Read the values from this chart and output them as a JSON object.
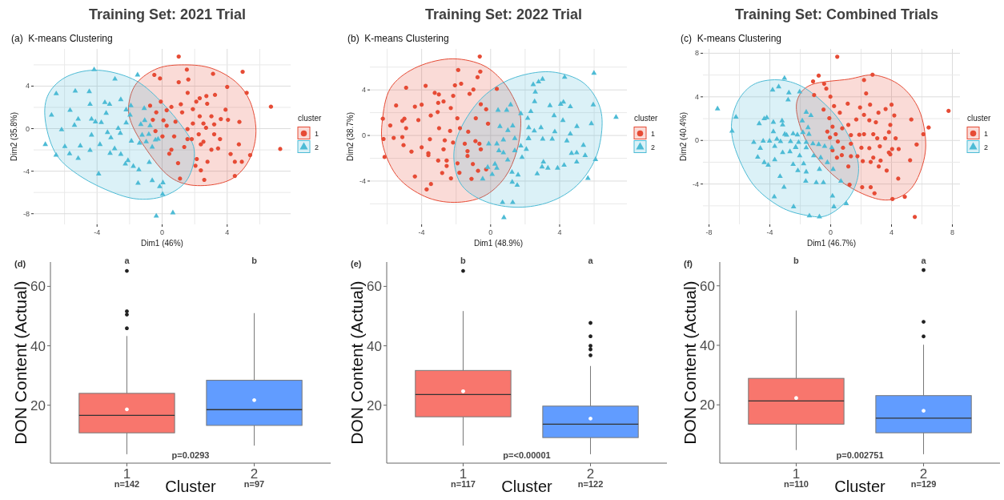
{
  "chart_data": [
    {
      "type": "scatter",
      "title": "Training Set: 2021 Trial",
      "subtitle": "(a)  K-means Clustering",
      "xlabel": "Dim1 (46%)",
      "ylabel": "Dim2 (35.8%)",
      "xlim": [
        -7.9,
        7.9
      ],
      "ylim": [
        -9,
        7.5
      ],
      "xticks": [
        {
          "value": -6,
          "label": null
        },
        -4,
        {
          "value": -2,
          "label": null
        },
        0,
        {
          "value": 2,
          "label": null
        },
        4,
        {
          "value": 6,
          "label": null
        }
      ],
      "yticks": [
        -8,
        {
          "value": -6,
          "label": null
        },
        -4,
        {
          "value": -2,
          "label": null
        },
        0,
        {
          "value": 2,
          "label": null
        },
        4,
        {
          "value": 6,
          "label": null
        }
      ],
      "grid": true,
      "legend": "right",
      "legend_title": "cluster",
      "series": [
        {
          "type": "area",
          "color": "#e64b35",
          "x": [
            1.39,
            3.03,
            4.51,
            5.41,
            5.77,
            5.41,
            4.51,
            3.2,
            1.56,
            0.25,
            -1.07,
            -1.89,
            -2.05,
            -1.56,
            -0.25
          ],
          "values": [
            6.0,
            5.68,
            4.42,
            2.54,
            -0.23,
            -2.74,
            -4.5,
            -5.25,
            -5.25,
            -4.25,
            -1.73,
            0.53,
            2.29,
            4.29,
            5.68
          ]
        },
        {
          "type": "area",
          "color": "#4dbbd5",
          "x": [
            -4.18,
            -2.21,
            -0.74,
            1.07,
            1.97,
            1.56,
            0.25,
            -1.39,
            -3.03,
            -5.0,
            -6.48,
            -7.16,
            -7.05,
            -5.98
          ],
          "values": [
            5.5,
            4.92,
            3.54,
            0.53,
            -1.98,
            -4.75,
            -6.26,
            -6.63,
            -6.0,
            -4.5,
            -2.49,
            0.53,
            3.04,
            4.8
          ]
        },
        {
          "name": "1",
          "color": "#e64b35",
          "marker": "circle",
          "x": [
            1.02,
            4.95,
            1.52,
            3.13,
            -0.48,
            -0.13,
            1.61,
            1.02,
            4.0,
            5.2,
            6.69,
            7.26,
            1.57,
            2.31,
            2.72,
            3.25,
            2.1,
            2.77,
            3.9,
            1.15,
            1.89,
            0.57,
            -0.36,
            -0.74,
            -0.08,
            0.28,
            1.23,
            2.31,
            3.03,
            3.61,
            4.05,
            4.75,
            1.89,
            2.54,
            3.2,
            0.82,
            0.08,
            -0.57,
            0.28,
            1.56,
            2.25,
            3.2,
            3.56,
            2.54,
            1.56,
            0.74,
            0.02,
            -0.41,
            1.36,
            2.38,
            3.03,
            3.44,
            4.21,
            4.72,
            5.41,
            4.9,
            4.47,
            2.13,
            2.79,
            0.98,
            0.44,
            2.05,
            2.38,
            4.47,
            2.59,
            1.1,
            1.82,
            0.57,
            2.7
          ],
          "values": [
            6.78,
            5.35,
            5.55,
            5.15,
            5.05,
            4.72,
            4.62,
            4.37,
            3.92,
            3.37,
            2.06,
            -1.91,
            3.37,
            2.86,
            3.07,
            3.17,
            2.54,
            2.34,
            1.78,
            2.29,
            1.83,
            2.04,
            1.53,
            2.16,
            2.54,
            1.73,
            1.53,
            1.16,
            1.16,
            0.9,
            0.83,
            0.63,
            0.48,
            0.48,
            0.4,
            0.65,
            0.78,
            0.83,
            0.28,
            -0.05,
            -0.53,
            -0.53,
            -0.98,
            -1.23,
            -0.98,
            -0.73,
            -0.73,
            -0.23,
            -1.73,
            -1.48,
            -1.98,
            -1.86,
            -2.39,
            -1.48,
            -2.49,
            -3.12,
            -3.12,
            -2.86,
            -3.12,
            -3.24,
            -2.36,
            -3.49,
            -3.92,
            -4.45,
            -4.82,
            -4.7,
            -0.98,
            -1.98,
            0.08
          ]
        },
        {
          "name": "2",
          "color": "#4dbbd5",
          "marker": "triangle",
          "x": [
            -4.18,
            -1.51,
            -2.9,
            -6.51,
            -5.34,
            -4.48,
            -2.54,
            -6.8,
            -5.66,
            -4.43,
            -3.52,
            -3.23,
            -2.21,
            -1.1,
            -1.92,
            -3.44,
            -6.18,
            -5.39,
            -5.16,
            -4.34,
            -4.1,
            -3.74,
            -3.36,
            -2.7,
            -2.21,
            -1.97,
            -1.31,
            -1.07,
            -0.74,
            -1.23,
            -0.82,
            -0.41,
            -0.25,
            -4.34,
            -3.15,
            -7.18,
            -5.98,
            -5.03,
            -3.82,
            -2.92,
            -1.89,
            -1.39,
            -0.98,
            -0.61,
            -6.52,
            -5.69,
            -5.16,
            -4.43,
            -3.2,
            -2.54,
            -2.26,
            -2.1,
            -1.77,
            -1.43,
            -0.79,
            -3.9,
            -1.48,
            -0.61,
            -0.15,
            0.05,
            0.03,
            -0.36,
            0.66,
            -2.57
          ],
          "values": [
            5.55,
            5.05,
            4.67,
            3.29,
            3.54,
            3.49,
            2.74,
            1.28,
            1.73,
            2.29,
            2.46,
            2.29,
            1.78,
            1.91,
            2.16,
            1.46,
            -0.1,
            0.33,
            0.9,
            0.9,
            0.65,
            0.58,
            -0.35,
            0.03,
            0.55,
            1.28,
            0.4,
            0.78,
            0.28,
            -0.6,
            -0.53,
            -1.06,
            -0.98,
            -0.6,
            -0.85,
            -1.48,
            -1.68,
            -1.61,
            -1.48,
            -1.88,
            -1.16,
            -1.36,
            -1.23,
            -1.73,
            -2.49,
            -2.36,
            -2.79,
            -2.04,
            -2.31,
            -2.41,
            -3.32,
            -2.99,
            -3.54,
            -3.87,
            -3.17,
            -4.25,
            -5.13,
            -4.87,
            -5.45,
            -5.08,
            -6.16,
            -8.22,
            -7.91,
            -0.43
          ]
        }
      ]
    },
    {
      "type": "scatter",
      "title": "Training Set: 2022 Trial",
      "subtitle": "(b)  K-means Clustering",
      "xlabel": "Dim1 (48.9%)",
      "ylabel": "Dim2 (38.7%)",
      "xlim": [
        -7,
        7.9
      ],
      "ylim": [
        -7.8,
        7.6
      ],
      "xticks": [
        {
          "value": -6,
          "label": null
        },
        -4,
        {
          "value": -2,
          "label": null
        },
        0,
        {
          "value": 2,
          "label": null
        },
        4,
        {
          "value": 6,
          "label": null
        }
      ],
      "yticks": [
        {
          "value": -6,
          "label": null
        },
        -4,
        {
          "value": -2,
          "label": null
        },
        0,
        {
          "value": 2,
          "label": null
        },
        4,
        {
          "value": 6,
          "label": null
        }
      ],
      "grid": true,
      "legend": "right",
      "legend_title": "cluster",
      "series": [
        {
          "type": "area",
          "color": "#e64b35",
          "x": [
            -2.42,
            -0.57,
            0.66,
            1.44,
            1.75,
            1.52,
            0.82,
            -0.42,
            -2.12,
            -3.82,
            -5.36,
            -6.21,
            -6.28,
            -5.82,
            -4.43
          ],
          "values": [
            6.72,
            6.25,
            4.83,
            2.93,
            1.28,
            -1.33,
            -3.69,
            -5.35,
            -5.87,
            -5.35,
            -3.69,
            -1.09,
            1.28,
            4.12,
            5.89
          ]
        },
        {
          "type": "area",
          "color": "#4dbbd5",
          "x": [
            3.75,
            5.3,
            6.22,
            6.46,
            6.07,
            4.99,
            3.44,
            1.59,
            -0.26,
            -1.66,
            -2.13,
            -1.82,
            -0.73,
            0.66,
            2.21
          ],
          "values": [
            5.54,
            4.71,
            2.93,
            0.8,
            -2.04,
            -4.4,
            -5.82,
            -6.3,
            -5.82,
            -4.4,
            -2.04,
            0.33,
            2.93,
            4.59,
            5.42
          ]
        },
        {
          "name": "1",
          "color": "#e64b35",
          "marker": "circle",
          "x": [
            -0.63,
            -1.88,
            -0.6,
            -1.71,
            -0.76,
            -2.07,
            -4.9,
            -3.77,
            -3.24,
            -3.0,
            -2.17,
            -2.73,
            -1.22,
            -1.0,
            0.36,
            -5.48,
            -4.39,
            -4.0,
            -3.04,
            -2.31,
            -0.57,
            -0.26,
            -6.25,
            -5.0,
            -5.12,
            -4.19,
            -3.07,
            -3.47,
            -1.93,
            -0.86,
            -0.15,
            -5.82,
            -4.9,
            -2.99,
            -2.35,
            -1.78,
            -1.3,
            -6.21,
            -5.62,
            -5.12,
            -3.52,
            -2.66,
            -2.18,
            -1.5,
            -0.88,
            -0.65,
            -5.05,
            -4.0,
            -2.73,
            -1.34,
            -0.57,
            -6.15,
            -4.59,
            -3.61,
            -3.61,
            -2.55,
            -3.04,
            -1.92,
            -1.34,
            -1.03,
            -2.55,
            -0.73,
            -2.81,
            -1.81,
            -4.39,
            -2.3,
            -3.46,
            -3.71,
            -1.11,
            -0.26
          ],
          "values": [
            6.93,
            5.75,
            5.61,
            4.54,
            5.11,
            4.4,
            4.19,
            4.36,
            3.74,
            3.6,
            3.48,
            2.98,
            3.65,
            4.03,
            4.09,
            2.63,
            2.53,
            2.7,
            2.86,
            2.41,
            2.74,
            2.3,
            1.47,
            1.47,
            1.28,
            1.35,
            2.06,
            1.75,
            1.51,
            1.51,
            1.04,
            0.88,
            0.64,
            0.64,
            0.4,
            0.64,
            0.33,
            -0.31,
            -0.21,
            -0.14,
            -0.33,
            -0.43,
            -0.62,
            -0.73,
            -0.5,
            -0.73,
            -0.85,
            -1.04,
            -1.21,
            -1.37,
            -1.21,
            -1.89,
            -1.42,
            -1.56,
            -1.73,
            -2.2,
            -2.2,
            -2.44,
            -1.8,
            -2.51,
            -2.67,
            -3.1,
            -3.29,
            -3.27,
            -3.6,
            -3.76,
            -4.26,
            -4.73,
            -3.81,
            -2.98
          ]
        },
        {
          "name": "2",
          "color": "#4dbbd5",
          "marker": "triangle",
          "x": [
            5.99,
            4.29,
            3.01,
            2.78,
            2.47,
            2.59,
            2.55,
            3.44,
            4.06,
            4.22,
            4.62,
            5.95,
            7.27,
            2.33,
            1.16,
            1.75,
            2.15,
            0.43,
            0.93,
            3.68,
            4.19,
            5.84,
            5.0,
            2.92,
            2.21,
            1.28,
            0.54,
            1.0,
            2.53,
            3.72,
            4.62,
            2.18,
            3.02,
            3.57,
            4.42,
            5.38,
            1.4,
            0.74,
            0.36,
            -0.11,
            1.75,
            2.07,
            1.4,
            0.74,
            0.48,
            4.69,
            4.99,
            5.48,
            6.08,
            1.82,
            0.99,
            0.25,
            -0.17,
            0.36,
            3.06,
            2.98,
            3.32,
            3.88,
            4.26,
            4.99,
            2.7,
            1.24,
            1.59,
            0.09,
            -0.46,
            1.25,
            1.54,
            5.64,
            0.69,
            1.28,
            0.77,
            2.21
          ],
          "values": [
            5.47,
            5.11,
            4.95,
            4.71,
            4.47,
            3.81,
            2.98,
            2.63,
            2.75,
            2.93,
            2.53,
            2.7,
            1.61,
            2.11,
            2.7,
            1.92,
            1.51,
            2.22,
            2.22,
            1.75,
            1.33,
            1.04,
            0.8,
            0.69,
            0.69,
            0.85,
            0.8,
            0.45,
            0.4,
            0.33,
            0.14,
            -0.28,
            -0.31,
            -0.31,
            -0.47,
            -0.85,
            -0.26,
            -0.38,
            -0.73,
            -0.73,
            -0.92,
            -1.21,
            -1.33,
            -1.51,
            -1.33,
            -1.56,
            -1.51,
            -1.75,
            -2.11,
            -1.92,
            -2.15,
            -2.51,
            -2.79,
            -2.86,
            -2.32,
            -2.75,
            -2.86,
            -2.86,
            -2.6,
            -2.32,
            -3.36,
            -3.22,
            -3.46,
            -3.41,
            -3.81,
            -4.09,
            -4.36,
            -3.76,
            -5.87,
            -5.87,
            -7.2,
            -0.26
          ]
        }
      ]
    },
    {
      "type": "scatter",
      "title": "Training Set: Combined Trials",
      "subtitle": "(c)  K-means Clustering",
      "xlabel": "Dim1 (46.7%)",
      "ylabel": "Dim2 (40.4%)",
      "xlim": [
        -8.4,
        8.5
      ],
      "ylim": [
        -7.7,
        8.4
      ],
      "xticks": [
        -8,
        {
          "value": -6,
          "label": null
        },
        -4,
        {
          "value": -2,
          "label": null
        },
        0,
        {
          "value": 2,
          "label": null
        },
        4,
        {
          "value": 6,
          "label": null
        },
        8
      ],
      "yticks": [
        {
          "value": -6,
          "label": null
        },
        -4,
        {
          "value": -2,
          "label": null
        },
        0,
        {
          "value": 2,
          "label": null
        },
        4,
        {
          "value": 6,
          "label": null
        },
        8
      ],
      "grid": true,
      "legend": "right",
      "legend_title": "cluster",
      "series": [
        {
          "type": "area",
          "color": "#e64b35",
          "x": [
            1.16,
            2.88,
            4.61,
            5.82,
            6.25,
            5.82,
            4.96,
            3.58,
            1.85,
            0.12,
            -1.35,
            -2.12,
            -2.18,
            -1.26
          ],
          "values": [
            5.62,
            5.99,
            5.0,
            2.78,
            -0.42,
            -3.13,
            -4.85,
            -5.47,
            -4.73,
            -3.13,
            -0.67,
            1.8,
            3.77,
            5.12
          ]
        },
        {
          "type": "area",
          "color": "#4dbbd5",
          "x": [
            -4.02,
            -2.64,
            -1.26,
            0.47,
            1.59,
            1.81,
            1.16,
            -0.22,
            -1.61,
            -3.33,
            -5.06,
            -6.18,
            -6.53,
            -6.13,
            -5.23
          ],
          "values": [
            5.54,
            5.37,
            4.38,
            2.04,
            -0.91,
            -3.13,
            -5.34,
            -6.87,
            -6.87,
            -6.08,
            -4.11,
            -1.16,
            1.31,
            3.52,
            5.0
          ]
        },
        {
          "name": "1",
          "color": "#e64b35",
          "marker": "circle",
          "x": [
            0.43,
            2.75,
            -0.79,
            -1.16,
            -0.43,
            -0.29,
            2.19,
            2.33,
            -1.09,
            -0.02,
            1.12,
            2.59,
            4.0,
            7.75,
            -0.47,
            0.22,
            0.6,
            1.93,
            2.19,
            3.14,
            3.61,
            4.18,
            5.3,
            6.44,
            -0.09,
            1.68,
            2.54,
            2.97,
            3.92,
            1.16,
            0.12,
            0.76,
            -0.22,
            0.33,
            1.88,
            2.19,
            2.8,
            3.83,
            6.09,
            1.33,
            3.06,
            3.58,
            4.27,
            5.65,
            -0.05,
            0.47,
            1.33,
            0.81,
            2.02,
            2.54,
            3.23,
            4.04,
            4.47,
            0.12,
            0.73,
            1.33,
            1.76,
            2.8,
            3.83,
            3.92,
            5.22,
            0.41,
            1.16,
            2.11,
            2.63,
            3.28,
            3.16,
            3.68,
            4.44,
            1.24,
            2.07,
            2.63,
            2.88,
            4.06,
            4.87,
            5.53
          ],
          "values": [
            7.68,
            6.03,
            5.94,
            5.42,
            5.2,
            4.75,
            5.54,
            4.31,
            4.16,
            4.01,
            3.37,
            3.28,
            3.28,
            2.71,
            2.83,
            3.15,
            2.54,
            3.03,
            2.34,
            2.54,
            2.88,
            2.29,
            1.92,
            1.18,
            2.04,
            1.92,
            1.85,
            1.67,
            1.43,
            1.43,
            1.26,
            1.11,
            0.81,
            0.57,
            0.52,
            0.57,
            0.57,
            0.76,
            0.57,
            0.49,
            0.2,
            0.2,
            0.2,
            -0.37,
            0.27,
            -0.1,
            -0.3,
            -0.67,
            -0.67,
            -0.71,
            -0.54,
            -0.79,
            -0.79,
            -0.91,
            -1.35,
            -1.45,
            -1.45,
            -1.58,
            -1.11,
            -1.28,
            -1.82,
            -1.58,
            -2.39,
            -1.9,
            -1.97,
            -1.85,
            -2.39,
            -2.76,
            -3.5,
            -4.06,
            -4.29,
            -4.29,
            -4.85,
            -5.37,
            -5.17,
            -7.02
          ]
        },
        {
          "name": "2",
          "color": "#4dbbd5",
          "marker": "triangle",
          "x": [
            -3.04,
            -3.42,
            -3.82,
            -2.75,
            -2.04,
            -2.8,
            -7.44,
            -6.23,
            -6.49,
            -4.2,
            -4.37,
            -3.77,
            -3.2,
            -4.7,
            -3.16,
            -3.77,
            -3.02,
            -2.9,
            -2.47,
            -1.61,
            -1.3,
            -1.87,
            -1.49,
            -2.19,
            -1.83,
            -1.43,
            -5.06,
            -4.44,
            -4.02,
            -3.54,
            -3.3,
            -2.64,
            -2.11,
            -1.61,
            -1.17,
            -0.79,
            -4.63,
            -3.68,
            -3.16,
            -2.68,
            -2.3,
            -2.04,
            -1.61,
            -1.12,
            -0.66,
            -0.4,
            -0.22,
            0.07,
            -4.8,
            -4.37,
            -4.11,
            -3.68,
            -2.47,
            -1.78,
            -2.16,
            -1.61,
            -0.74,
            0.16,
            -3.33,
            -3.07,
            -1.64,
            -0.95,
            -0.48,
            0.67,
            -3.71,
            0.12,
            0.21,
            -2.44,
            -1.4,
            -0.74,
            1.02,
            -2.3
          ],
          "values": [
            5.71,
            4.93,
            4.63,
            4.38,
            4.46,
            3.72,
            2.91,
            2.14,
            0.86,
            2.09,
            2.0,
            1.67,
            1.8,
            1.55,
            1.43,
            0.81,
            0.57,
            0.49,
            0.62,
            2.59,
            2.29,
            1.8,
            1.18,
            0.52,
            0.74,
            0.57,
            -0.17,
            -0.05,
            -0.05,
            0.12,
            -0.1,
            -0.1,
            -0.17,
            -0.17,
            -0.3,
            -0.37,
            -0.71,
            -0.54,
            -1.11,
            -1.03,
            -0.64,
            -1.4,
            -0.67,
            -1.4,
            -1.58,
            -0.54,
            -2.02,
            -0.67,
            -1.53,
            -2.02,
            -2.27,
            -1.77,
            -2.19,
            -2.14,
            -2.76,
            -2.88,
            -2.64,
            -2.64,
            -3.3,
            -4.29,
            -3.74,
            -3.87,
            -3.87,
            -3.74,
            -5.17,
            -5.1,
            -6.08,
            -6.08,
            -6.92,
            -7.0,
            -5.79,
            -0.62
          ]
        }
      ]
    },
    {
      "type": "box",
      "title": "(d)",
      "categories": [
        "1",
        "2"
      ],
      "colors": [
        "#f8766d",
        "#619cff"
      ],
      "xlabel": "Cluster",
      "ylabel": "DON Content (Actual)",
      "ylim": [
        0.5,
        68.2
      ],
      "yticks": [
        20,
        40,
        60
      ],
      "boxes": [
        {
          "low": 3.5,
          "q1": 10.7,
          "median": 16.6,
          "q3": 24.0,
          "high": 43.3,
          "mean": 18.6,
          "outliers": [
            65.2,
            51.6,
            50.5,
            45.9
          ]
        },
        {
          "low": 6.4,
          "q1": 13.2,
          "median": 18.5,
          "q3": 28.4,
          "high": 51.0,
          "mean": 21.7
        }
      ],
      "annotations": [
        "a",
        "b",
        "p=0.0293",
        "n=142",
        "n=97"
      ]
    },
    {
      "type": "box",
      "title": "(e)",
      "categories": [
        "1",
        "2"
      ],
      "colors": [
        "#f8766d",
        "#619cff"
      ],
      "xlabel": "Cluster",
      "ylabel": "DON Content (Actual)",
      "ylim": [
        0.5,
        68.2
      ],
      "yticks": [
        20,
        40,
        60
      ],
      "boxes": [
        {
          "low": 6.4,
          "q1": 16.1,
          "median": 23.6,
          "q3": 31.7,
          "high": 51.7,
          "mean": 24.7,
          "outliers": [
            65.2
          ]
        },
        {
          "low": 3.5,
          "q1": 9.1,
          "median": 13.6,
          "q3": 19.7,
          "high": 33.2,
          "mean": 15.5,
          "outliers": [
            47.7,
            43.2,
            40.0,
            38.8,
            36.8
          ]
        }
      ],
      "annotations": [
        "b",
        "a",
        "p=<0.00001",
        "n=117",
        "n=122"
      ]
    },
    {
      "type": "box",
      "title": "(f)",
      "categories": [
        "1",
        "2"
      ],
      "colors": [
        "#f8766d",
        "#619cff"
      ],
      "xlabel": "Cluster",
      "ylabel": "DON Content (Actual)",
      "ylim": [
        0.4,
        68
      ],
      "yticks": [
        20,
        40,
        60
      ],
      "boxes": [
        {
          "low": 4.8,
          "q1": 13.5,
          "median": 21.3,
          "q3": 28.9,
          "high": 51.7,
          "mean": 22.3
        },
        {
          "low": 3.4,
          "q1": 10.6,
          "median": 15.5,
          "q3": 23.1,
          "high": 40.2,
          "mean": 18.0,
          "outliers": [
            65.3,
            47.9,
            43.0
          ]
        }
      ],
      "annotations": [
        "b",
        "a",
        "p=0.002751",
        "n=110",
        "n=129"
      ]
    }
  ]
}
